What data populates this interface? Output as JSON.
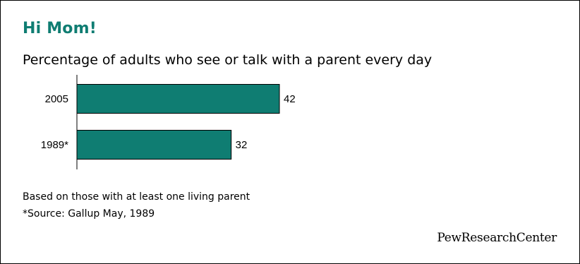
{
  "title": "Hi Mom!",
  "subtitle": "Percentage of adults who see or talk with a parent every day",
  "chart_data": {
    "type": "bar",
    "orientation": "horizontal",
    "categories": [
      "2005",
      "1989*"
    ],
    "values": [
      42,
      32
    ],
    "value_labels": [
      "42",
      "32"
    ],
    "xlim": [
      0,
      100
    ],
    "grid": false,
    "bar_color": "#0f7d72"
  },
  "notes": {
    "basis": "Based on those with at least one living parent",
    "source": "*Source: Gallup May, 1989"
  },
  "brand": {
    "part1": "PewResearch",
    "part2": "Center"
  }
}
